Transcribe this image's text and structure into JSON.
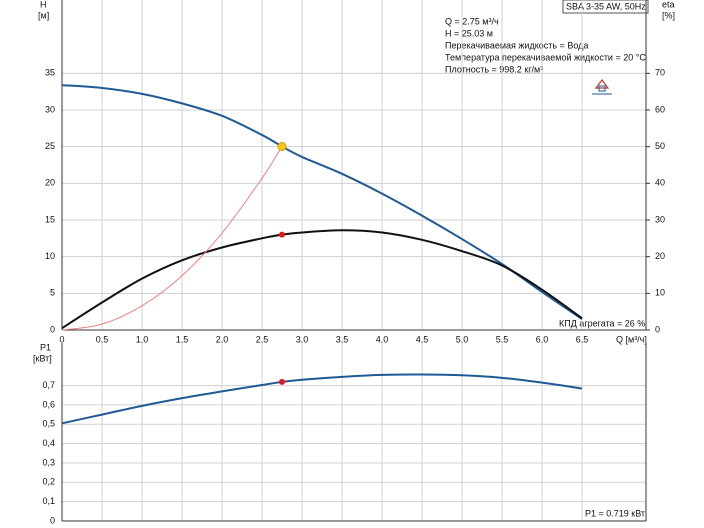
{
  "chart_data": [
    {
      "type": "line",
      "title": "SBA 3-35 AW, 50Hz",
      "ylabel": "H",
      "yunit": "[м]",
      "y2label": "eta",
      "y2unit": "[%]",
      "xlabel": "Q [м³/ч]",
      "annotations": [
        "Q = 2.75 м³/ч",
        "H = 25.03 м",
        "Перекачиваемая жидкость = Вода",
        "Температура перекачиваемой жидкости = 20 °C",
        "Плотность = 998.2 кг/м³"
      ],
      "note": "КПД агрегата = 26 %",
      "x": [
        0,
        0.5,
        1,
        1.5,
        2,
        2.5,
        2.75,
        3,
        3.5,
        4,
        4.5,
        5,
        5.5,
        6,
        6.5
      ],
      "xlim": [
        0,
        7.3
      ],
      "xticks": [
        0,
        {
          "value": 0.5,
          "label": "0,5"
        },
        {
          "value": 1,
          "label": "1,0"
        },
        {
          "value": 1.5,
          "label": "1,5"
        },
        {
          "value": 2,
          "label": "2,0"
        },
        {
          "value": 2.5,
          "label": "2,5"
        },
        {
          "value": 3,
          "label": "3,0"
        },
        {
          "value": 3.5,
          "label": "3,5"
        },
        {
          "value": 4,
          "label": "4,0"
        },
        {
          "value": 4.5,
          "label": "4,5"
        },
        {
          "value": 5,
          "label": "5,0"
        },
        {
          "value": 5.5,
          "label": "5,5"
        },
        {
          "value": 6,
          "label": "6,0"
        },
        {
          "value": 6.5,
          "label": "6,5"
        }
      ],
      "xtick_labels": true,
      "ylim": [
        0,
        45
      ],
      "yticks": [
        0,
        5,
        10,
        15,
        20,
        25,
        30,
        35
      ],
      "y2lim": [
        0,
        90
      ],
      "y2ticks": [
        0,
        10,
        20,
        30,
        40,
        50,
        60,
        70
      ],
      "grid": true,
      "series": [
        {
          "color": "#1f5a96",
          "width": 2,
          "values": [
            33.4,
            33.0,
            32.2,
            30.9,
            29.2,
            26.6,
            25.03,
            23.6,
            21.3,
            18.6,
            15.6,
            12.4,
            9.0,
            5.2,
            1.5
          ]
        },
        {
          "color": "#111111",
          "width": 2,
          "axis": "y2",
          "values": [
            0.5,
            7.5,
            14,
            19,
            22.5,
            25,
            26,
            26.6,
            27.2,
            26.6,
            24.6,
            21.5,
            17.6,
            11,
            3.2
          ]
        },
        {
          "color": "#f08080",
          "width": 1,
          "values": [
            0,
            0.8,
            3.3,
            7.4,
            13.2,
            20.7,
            25.03,
            null,
            null,
            null,
            null,
            null,
            null,
            null,
            null
          ]
        }
      ],
      "markers": [
        {
          "x": 2.75,
          "y": 25.03,
          "color": "#f5c518"
        },
        {
          "x": 2.75,
          "y": 26,
          "axis": "y2",
          "color": "#e31b1b"
        }
      ]
    },
    {
      "type": "line",
      "ylabel": "P1",
      "yunit": "[кВт]",
      "note": "P1 = 0.719 кВт",
      "x": [
        0,
        0.5,
        1,
        1.5,
        2,
        2.5,
        2.75,
        3,
        3.5,
        4,
        4.5,
        5,
        5.5,
        6,
        6.5
      ],
      "xlim": [
        0,
        7.3
      ],
      "xticks": [
        0,
        0.5,
        1,
        1.5,
        2,
        2.5,
        3,
        3.5,
        4,
        4.5,
        5,
        5.5,
        6,
        6.5
      ],
      "xtick_labels": false,
      "ylim": [
        0,
        0.92
      ],
      "yticks": [
        0,
        {
          "value": 0.1,
          "label": "0,1"
        },
        {
          "value": 0.2,
          "label": "0,2"
        },
        {
          "value": 0.3,
          "label": "0,3"
        },
        {
          "value": 0.4,
          "label": "0,4"
        },
        {
          "value": 0.5,
          "label": "0,5"
        },
        {
          "value": 0.6,
          "label": "0,6"
        },
        {
          "value": 0.7,
          "label": "0,7"
        }
      ],
      "grid": true,
      "series": [
        {
          "color": "#1f5a96",
          "width": 2,
          "values": [
            0.505,
            0.55,
            0.595,
            0.635,
            0.67,
            0.703,
            0.719,
            0.73,
            0.745,
            0.755,
            0.757,
            0.753,
            0.74,
            0.715,
            0.685
          ]
        }
      ],
      "markers": [
        {
          "x": 2.75,
          "y": 0.719,
          "color": "#e31b1b"
        }
      ]
    }
  ]
}
